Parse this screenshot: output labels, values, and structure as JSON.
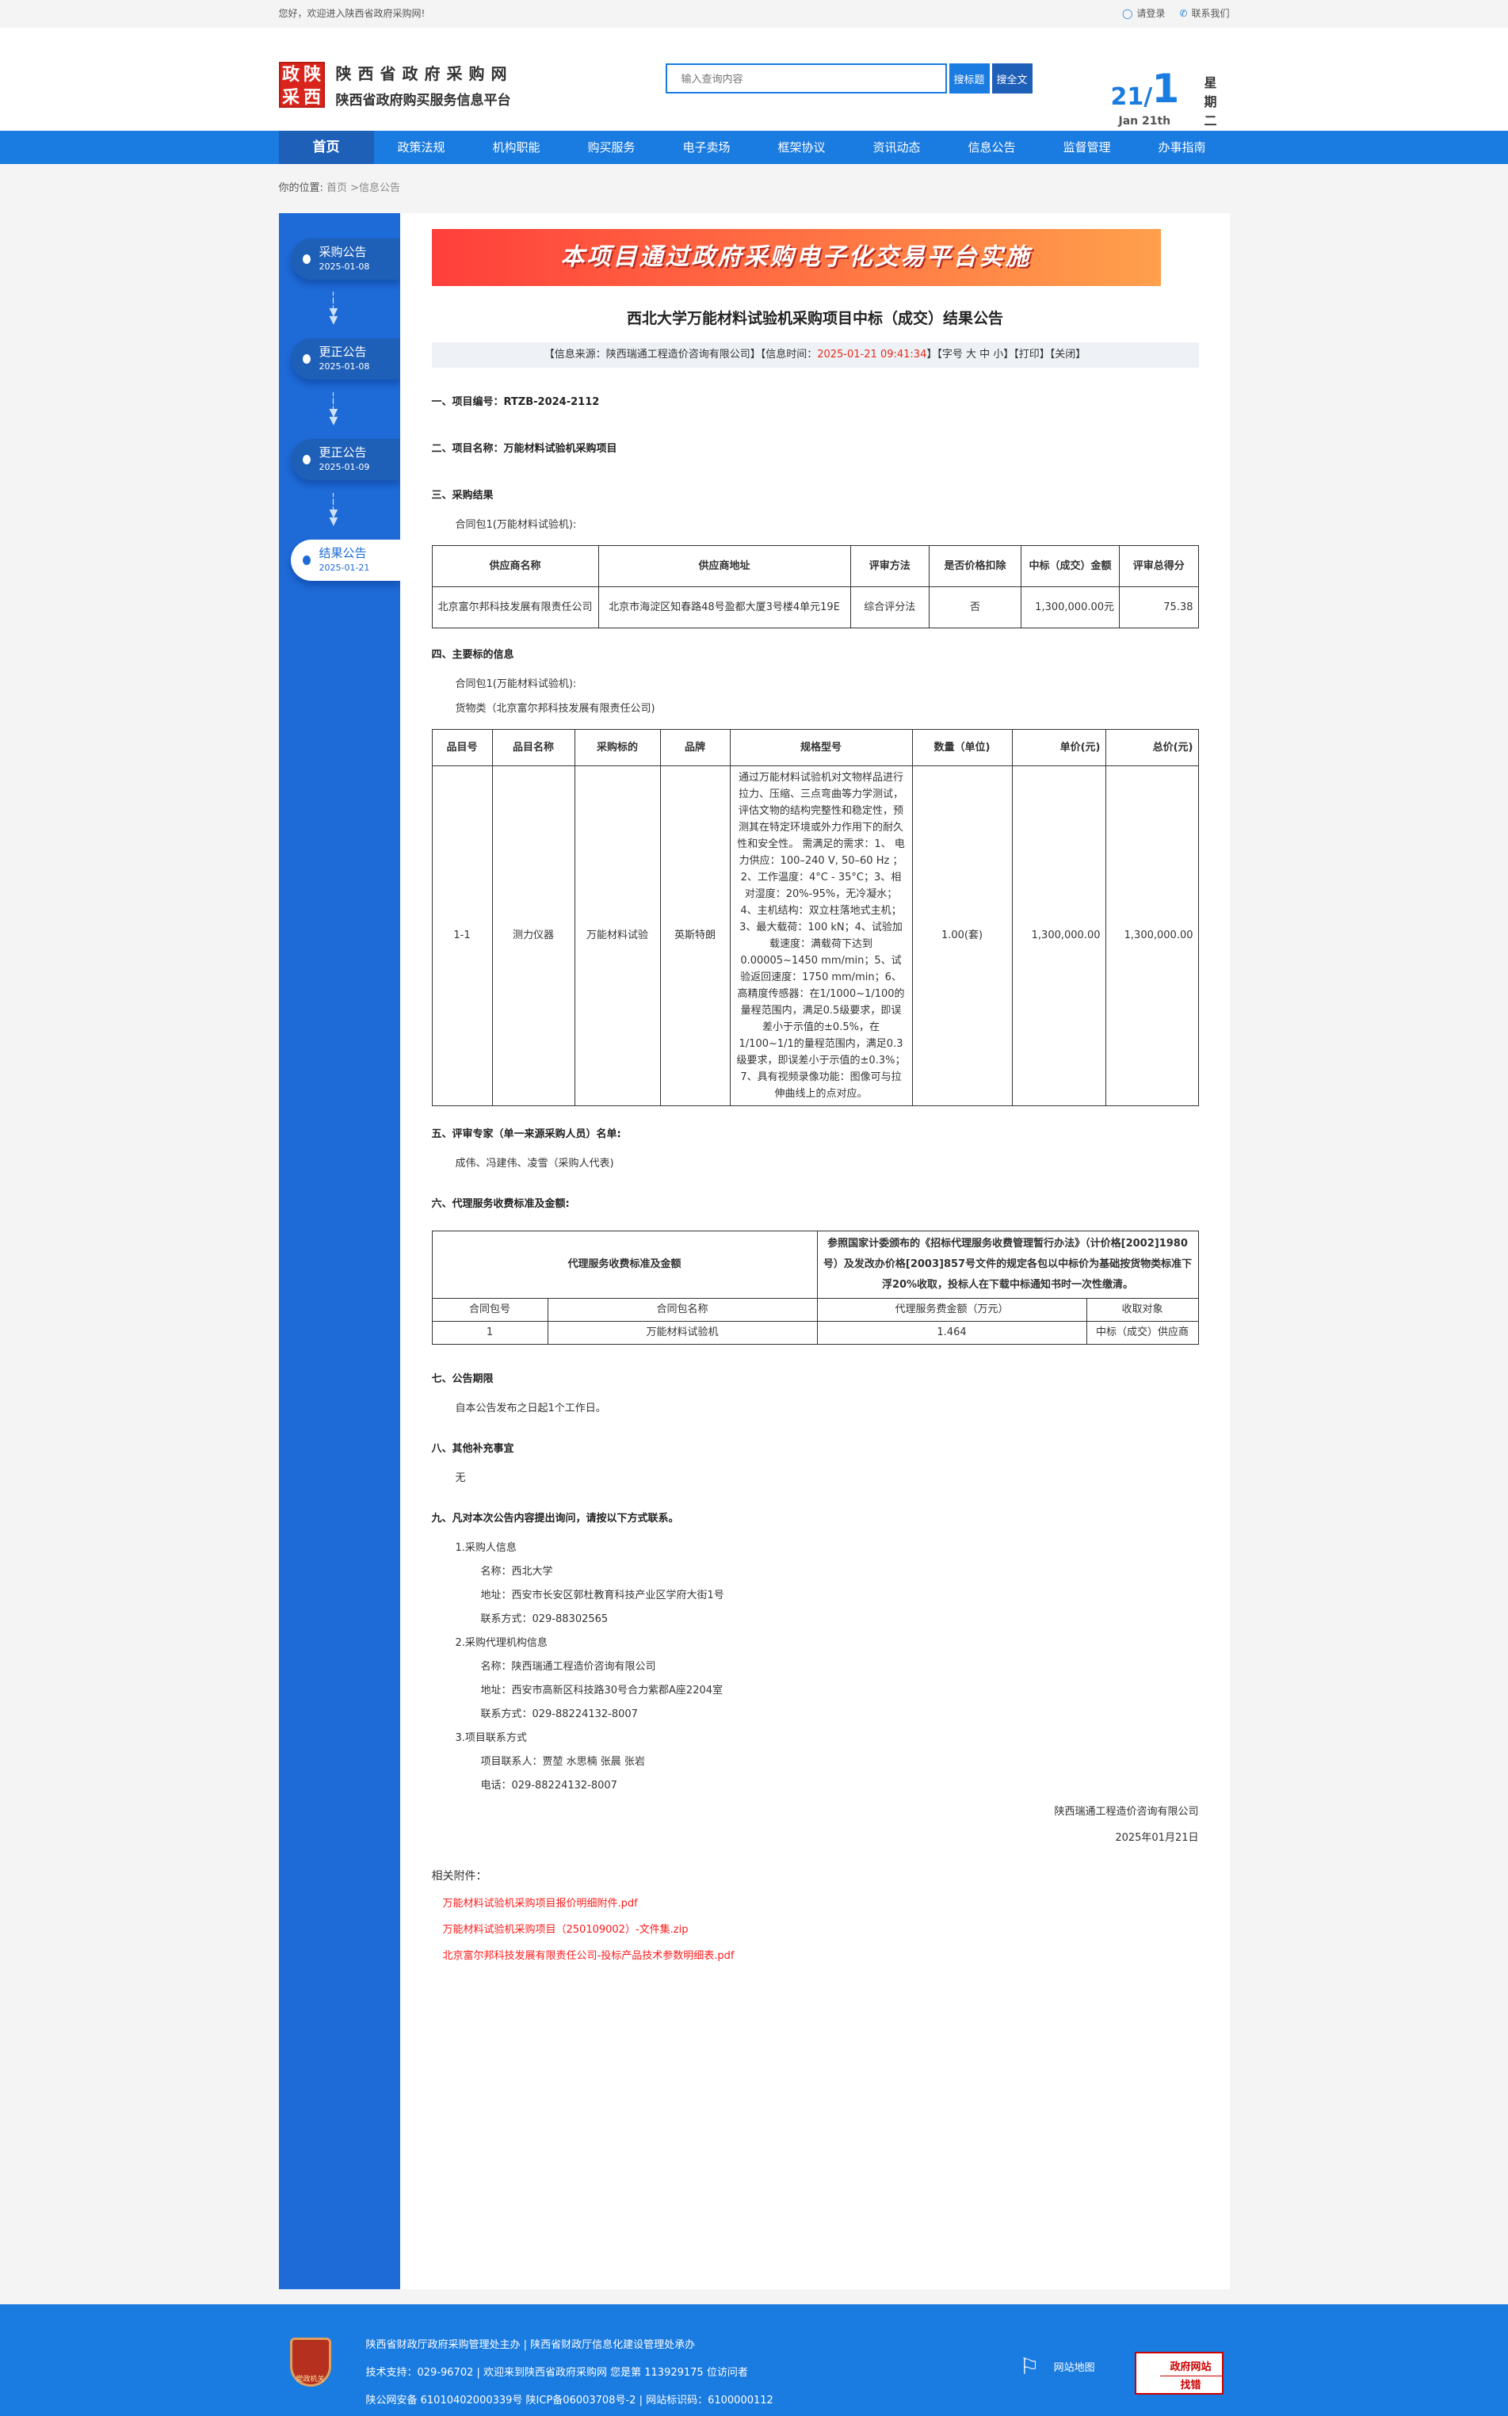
{
  "topbar": {
    "welcome": "您好，欢迎进入陕西省政府采购网!",
    "login": "请登录",
    "contact": "联系我们"
  },
  "header": {
    "seal": [
      "政",
      "陕",
      "采",
      "西"
    ],
    "site_name": "陕西省政府采购网",
    "site_sub": "陕西省政府购买服务信息平台",
    "search_placeholder": "输入查询内容",
    "search_title": "搜标题",
    "search_full": "搜全文",
    "date_day": "21",
    "date_month": "1",
    "date_en": "Jan 21th",
    "weekday": "星期二"
  },
  "nav": [
    "首页",
    "政策法规",
    "机构职能",
    "购买服务",
    "电子卖场",
    "框架协议",
    "资讯动态",
    "信息公告",
    "监督管理",
    "办事指南"
  ],
  "breadcrumb": {
    "label": "你的位置:",
    "path": "首页 >信息公告"
  },
  "timeline": [
    {
      "title": "采购公告",
      "date": "2025-01-08"
    },
    {
      "title": "更正公告",
      "date": "2025-01-08"
    },
    {
      "title": "更正公告",
      "date": "2025-01-09"
    },
    {
      "title": "结果公告",
      "date": "2025-01-21"
    }
  ],
  "banner": "本项目通过政府采购电子化交易平台实施",
  "title": "西北大学万能材料试验机采购项目中标（成交）结果公告",
  "info": {
    "source": "【信息来源：陕西瑞通工程造价咨询有限公司】【信息时间：",
    "time": "2025-01-21 09:41:34",
    "tail": "】【字号 大 中 小】【打印】【关闭】"
  },
  "s1": "一、项目编号：RTZB-2024-2112",
  "s2": "二、项目名称：万能材料试验机采购项目",
  "s3": "三、采购结果",
  "s3_pkg": "合同包1(万能材料试验机):",
  "result_table": {
    "headers": [
      "供应商名称",
      "供应商地址",
      "评审方法",
      "是否价格扣除",
      "中标（成交）金额",
      "评审总得分"
    ],
    "row": [
      "北京富尔邦科技发展有限责任公司",
      "北京市海淀区知春路48号盈都大厦3号楼4单元19E",
      "综合评分法",
      "否",
      "1,300,000.00元",
      "75.38"
    ]
  },
  "s4": "四、主要标的信息",
  "s4_pkg": "合同包1(万能材料试验机):",
  "s4_cat": "货物类（北京富尔邦科技发展有限责任公司)",
  "item_table": {
    "headers": [
      "品目号",
      "品目名称",
      "采购标的",
      "品牌",
      "规格型号",
      "数量（单位)",
      "单价(元)",
      "总价(元)"
    ],
    "row": [
      "1-1",
      "测力仪器",
      "万能材料试验",
      "英斯特朗",
      "通过万能材料试验机对文物样品进行拉力、压缩、三点弯曲等力学测试，评估文物的结构完整性和稳定性，预测其在特定环境或外力作用下的耐久性和安全性。 需满足的需求：1、 电力供应：100–240 V, 50–60 Hz ；2、工作温度：4°C - 35°C；3、相对湿度：20%-95%，无冷凝水；4、主机结构：双立柱落地式主机；3、最大载荷：100 kN；4、试验加载速度：满载荷下达到0.00005~1450 mm/min；5、试验返回速度：1750 mm/min；6、高精度传感器：在1/1000~1/100的量程范围内，满足0.5级要求，即误差小于示值的±0.5%，在1/100~1/1的量程范围内，满足0.3级要求，即误差小于示值的±0.3%；7、具有视频录像功能：图像可与拉伸曲线上的点对应。",
      "1.00(套)",
      "1,300,000.00",
      "1,300,000.00"
    ]
  },
  "s5": "五、评审专家（单一来源采购人员）名单:",
  "s5_names": "成伟、冯建伟、凌雪（采购人代表)",
  "s6": "六、代理服务收费标准及金额:",
  "fee_table": {
    "label": "代理服务收费标准及金额",
    "desc": "参照国家计委颁布的《招标代理服务收费管理暂行办法》（计价格[2002]1980号）及发改办价格[2003]857号文件的规定各包以中标价为基础按货物类标准下浮20%收取，投标人在下载中标通知书时一次性缴清。",
    "headers": [
      "合同包号",
      "合同包名称",
      "代理服务费金额（万元）",
      "收取对象"
    ],
    "row": [
      "1",
      "万能材料试验机",
      "1.464",
      "中标（成交）供应商"
    ]
  },
  "s7": "七、公告期限",
  "s7_text": "自本公告发布之日起1个工作日。",
  "s8": "八、其他补充事宜",
  "s8_text": "无",
  "s9": "九、凡对本次公告内容提出询问，请按以下方式联系。",
  "contacts": [
    {
      "head": "1.采购人信息",
      "lines": [
        "名称：西北大学",
        "地址：西安市长安区郭杜教育科技产业区学府大街1号",
        "联系方式：029-88302565"
      ]
    },
    {
      "head": "2.采购代理机构信息",
      "lines": [
        "名称：陕西瑞通工程造价咨询有限公司",
        "地址：西安市高新区科技路30号合力紫郡A座2204室",
        "联系方式：029-88224132-8007"
      ]
    },
    {
      "head": "3.项目联系方式",
      "lines": [
        "项目联系人：贾堃 水思楠 张晨 张岩",
        "电话：029-88224132-8007"
      ]
    }
  ],
  "sign_org": "陕西瑞通工程造价咨询有限公司",
  "sign_date": "2025年01月21日",
  "attachments": {
    "label": "相关附件：",
    "files": [
      "万能材料试验机采购项目报价明细附件.pdf",
      "万能材料试验机采购项目（250109002）-文件集.zip",
      "北京富尔邦科技发展有限责任公司-投标产品技术参数明细表.pdf"
    ]
  },
  "footer": {
    "emblem": "党政机关",
    "line1": "陕西省财政厅政府采购管理处主办 | 陕西省财政厅信息化建设管理处承办",
    "line2": "技术支持：029-96702 | 欢迎来到陕西省政府采购网 您是第 113929175 位访问者",
    "line3": "陕公网安备 61010402000339号   陕ICP备06003708号-2  |  网站标识码：6100000112",
    "sitemap": "网站地图",
    "error_top": "政府网站",
    "error_bottom": "找错"
  }
}
